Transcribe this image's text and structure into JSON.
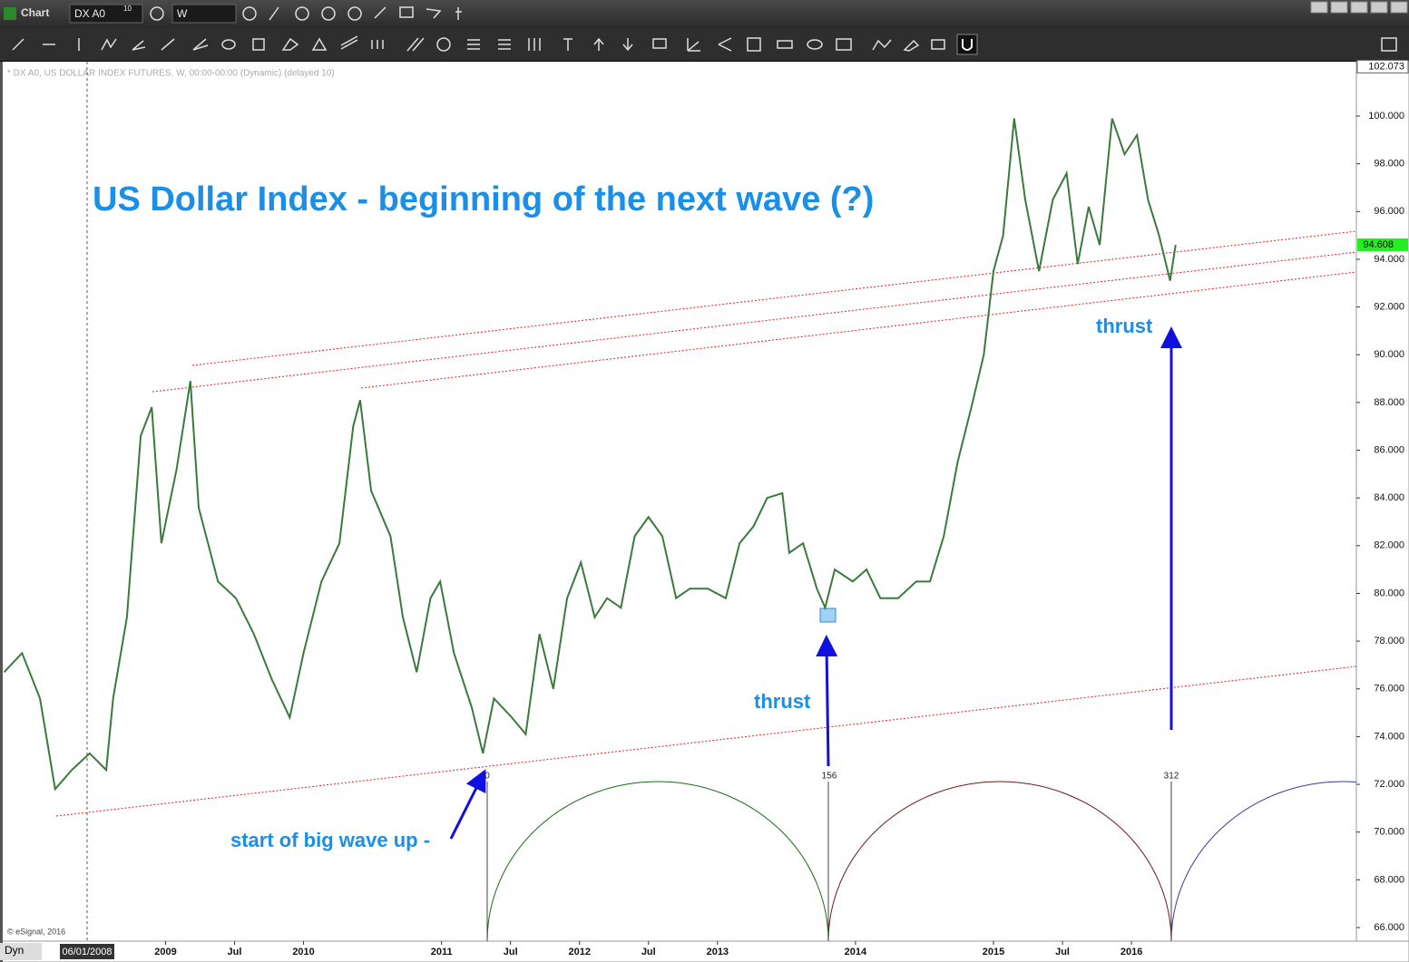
{
  "window": {
    "app_title": "Chart",
    "symbol": "DX A0",
    "symbol_badge": "10",
    "interval": "W",
    "symbol_info": "* DX A0, US DOLLAR INDEX FUTURES, W, 00:00-00:00 (Dynamic) (delayed 10)",
    "copyright": "© eSignal, 2016",
    "mode": "Dyn",
    "cursor_date": "06/01/2008"
  },
  "chart_data": {
    "type": "line",
    "title": "US Dollar Index - beginning of the next wave (?)",
    "color": "#3a7a3a",
    "x": [
      2007.83,
      2007.96,
      2008.09,
      2008.2,
      2008.32,
      2008.45,
      2008.57,
      2008.62,
      2008.72,
      2008.82,
      2008.9,
      2008.97,
      2009.08,
      2009.18,
      2009.24,
      2009.38,
      2009.51,
      2009.64,
      2009.77,
      2009.9,
      2010.0,
      2010.13,
      2010.26,
      2010.36,
      2010.41,
      2010.49,
      2010.63,
      2010.72,
      2010.82,
      2010.92,
      2010.99,
      2011.09,
      2011.22,
      2011.3,
      2011.38,
      2011.51,
      2011.61,
      2011.71,
      2011.81,
      2011.91,
      2012.01,
      2012.11,
      2012.2,
      2012.3,
      2012.4,
      2012.5,
      2012.6,
      2012.7,
      2012.8,
      2012.93,
      2013.06,
      2013.16,
      2013.26,
      2013.36,
      2013.47,
      2013.52,
      2013.62,
      2013.72,
      2013.78,
      2013.85,
      2013.98,
      2014.08,
      2014.18,
      2014.31,
      2014.44,
      2014.54,
      2014.64,
      2014.74,
      2014.84,
      2014.93,
      2015.0,
      2015.07,
      2015.15,
      2015.23,
      2015.33,
      2015.43,
      2015.53,
      2015.61,
      2015.69,
      2015.77,
      2015.86,
      2015.95,
      2016.04,
      2016.12,
      2016.2,
      2016.28,
      2016.32
    ],
    "values": [
      76.7,
      77.5,
      75.6,
      71.8,
      72.6,
      73.3,
      72.6,
      75.6,
      79.0,
      86.6,
      87.8,
      82.1,
      85.2,
      88.9,
      83.6,
      80.5,
      79.8,
      78.3,
      76.4,
      74.8,
      77.5,
      80.5,
      82.1,
      87.0,
      88.1,
      84.3,
      82.4,
      79.0,
      76.7,
      79.8,
      80.5,
      77.5,
      75.2,
      73.3,
      75.6,
      74.8,
      74.1,
      78.3,
      76.0,
      79.8,
      81.3,
      79.0,
      79.8,
      79.4,
      82.4,
      83.2,
      82.4,
      79.8,
      80.2,
      80.2,
      79.8,
      82.1,
      82.8,
      84.0,
      84.2,
      81.7,
      82.1,
      80.2,
      79.4,
      81.0,
      80.5,
      81.0,
      79.8,
      79.8,
      80.5,
      80.5,
      82.4,
      85.5,
      87.8,
      90.0,
      93.5,
      95.0,
      99.9,
      96.5,
      93.5,
      96.5,
      97.6,
      93.8,
      96.2,
      94.6,
      99.9,
      98.4,
      99.2,
      96.5,
      95.0,
      93.1,
      94.6
    ],
    "xlim": [
      2007.82,
      2017.63
    ],
    "ylim": [
      65.43,
      102.28
    ],
    "xticks": [
      {
        "value": 2009,
        "label": "2009"
      },
      {
        "value": 2009.5,
        "label": "Jul"
      },
      {
        "value": 2010,
        "label": "2010"
      },
      {
        "value": 2011,
        "label": "2011"
      },
      {
        "value": 2011.5,
        "label": "Jul"
      },
      {
        "value": 2012,
        "label": "2012"
      },
      {
        "value": 2012.5,
        "label": "Jul"
      },
      {
        "value": 2013,
        "label": "2013"
      },
      {
        "value": 2014,
        "label": "2014"
      },
      {
        "value": 2015,
        "label": "2015"
      },
      {
        "value": 2015.5,
        "label": "Jul"
      },
      {
        "value": 2016,
        "label": "2016"
      }
    ],
    "yticks": [
      {
        "value": 66,
        "label": "66.000"
      },
      {
        "value": 68,
        "label": "68.000"
      },
      {
        "value": 70,
        "label": "70.000"
      },
      {
        "value": 72,
        "label": "72.000"
      },
      {
        "value": 74,
        "label": "74.000"
      },
      {
        "value": 76,
        "label": "76.000"
      },
      {
        "value": 78,
        "label": "78.000"
      },
      {
        "value": 80,
        "label": "80.000"
      },
      {
        "value": 82,
        "label": "82.000"
      },
      {
        "value": 84,
        "label": "84.000"
      },
      {
        "value": 86,
        "label": "86.000"
      },
      {
        "value": 88,
        "label": "88.000"
      },
      {
        "value": 90,
        "label": "90.000"
      },
      {
        "value": 92,
        "label": "92.000"
      },
      {
        "value": 94,
        "label": "94.000"
      },
      {
        "value": 96,
        "label": "96.000"
      },
      {
        "value": 98,
        "label": "98.000"
      },
      {
        "value": 100,
        "label": "100.000"
      }
    ],
    "axis_top": 102.073,
    "last_price": 94.608,
    "annotations": {
      "thrust_1": "thrust",
      "thrust_2": "thrust",
      "start": "start of big wave up -",
      "cycle_0": "0",
      "cycle_156": "156",
      "cycle_312": "312"
    }
  }
}
